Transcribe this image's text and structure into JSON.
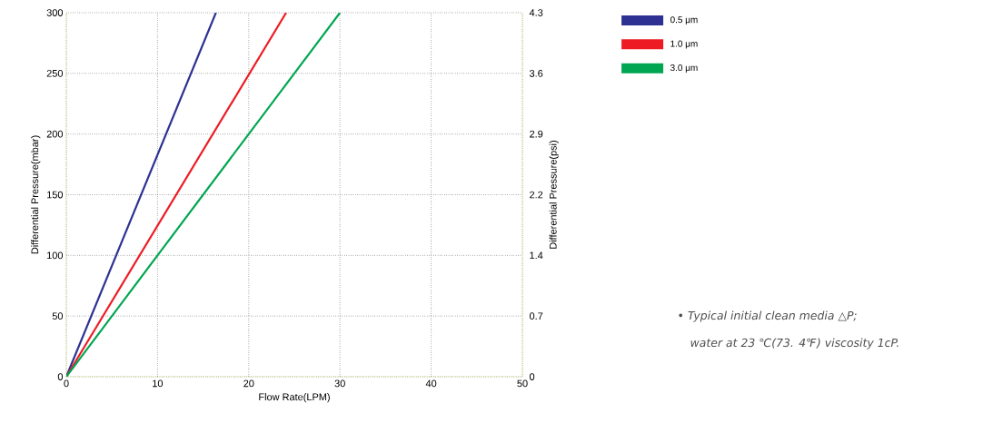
{
  "chart_data": {
    "type": "line",
    "xlabel": "Flow Rate(LPM)",
    "ylabel": "Differential Pressure(mbar)",
    "y2label": "Differential Pressure(psi)",
    "xlim": [
      0,
      50
    ],
    "xticks": [
      0,
      10,
      20,
      30,
      40,
      50
    ],
    "ylim": [
      0,
      300
    ],
    "yticks": [
      0,
      50,
      100,
      150,
      200,
      250,
      300
    ],
    "y2lim": [
      0,
      4.35
    ],
    "y2ticks": [
      {
        "value": 0,
        "label": "0"
      },
      {
        "value": 0.725,
        "label": "0.7"
      },
      {
        "value": 1.45,
        "label": "1.4"
      },
      {
        "value": 2.175,
        "label": "2.2"
      },
      {
        "value": 2.9,
        "label": "2.9"
      },
      {
        "value": 3.625,
        "label": "3.6"
      },
      {
        "value": 4.35,
        "label": "4.3"
      }
    ],
    "series": [
      {
        "name": "0.5 μm",
        "color": "#2e3192",
        "x": [
          0,
          16.4
        ],
        "values": [
          0,
          300
        ]
      },
      {
        "name": "1.0 μm",
        "color": "#ed1c24",
        "x": [
          0,
          24.1
        ],
        "values": [
          0,
          300
        ]
      },
      {
        "name": "3.0 μm",
        "color": "#00a651",
        "x": [
          0,
          30
        ],
        "values": [
          0,
          300
        ]
      }
    ],
    "grid": true,
    "legend": "top right",
    "line_style": "solid",
    "marker": "none",
    "annotations": [
      "• Typical initial clean media △P;",
      "water at 23 ℃(73. 4℉) viscosity 1cP."
    ]
  }
}
